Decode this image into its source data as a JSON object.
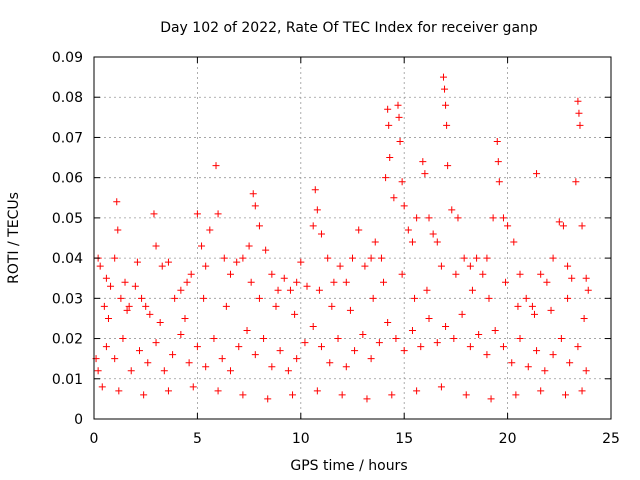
{
  "chart_data": {
    "type": "scatter",
    "title": "Day 102 of 2022, Rate Of TEC Index for receiver ganp",
    "xlabel": "GPS time / hours",
    "ylabel": "ROTI / TECUs",
    "xlim": [
      0,
      25
    ],
    "ylim": [
      0,
      0.09
    ],
    "xticks": [
      0,
      5,
      10,
      15,
      20,
      25
    ],
    "xtick_labels": [
      "0",
      "5",
      "10",
      "15",
      "20",
      "25"
    ],
    "yticks": [
      0,
      0.01,
      0.02,
      0.03,
      0.04,
      0.05,
      0.06,
      0.07,
      0.08,
      0.09
    ],
    "ytick_labels": [
      "0",
      "0.01",
      "0.02",
      "0.03",
      "0.04",
      "0.05",
      "0.06",
      "0.07",
      "0.08",
      "0.09"
    ],
    "grid": true,
    "marker": "+",
    "color": "#ff0000",
    "series": [
      {
        "points": [
          [
            0.1,
            0.015
          ],
          [
            0.2,
            0.04
          ],
          [
            0.3,
            0.038
          ],
          [
            0.5,
            0.028
          ],
          [
            0.6,
            0.035
          ],
          [
            0.8,
            0.033
          ],
          [
            1.0,
            0.04
          ],
          [
            1.1,
            0.054
          ],
          [
            1.15,
            0.047
          ],
          [
            1.3,
            0.03
          ],
          [
            1.5,
            0.034
          ],
          [
            1.7,
            0.028
          ],
          [
            2.0,
            0.033
          ],
          [
            2.1,
            0.039
          ],
          [
            2.3,
            0.03
          ],
          [
            2.5,
            0.028
          ],
          [
            2.9,
            0.051
          ],
          [
            3.0,
            0.043
          ],
          [
            3.3,
            0.038
          ],
          [
            3.6,
            0.039
          ],
          [
            3.9,
            0.03
          ],
          [
            4.2,
            0.032
          ],
          [
            4.5,
            0.034
          ],
          [
            4.7,
            0.036
          ],
          [
            5.0,
            0.051
          ],
          [
            5.2,
            0.043
          ],
          [
            5.4,
            0.038
          ],
          [
            5.6,
            0.047
          ],
          [
            5.9,
            0.063
          ],
          [
            6.0,
            0.051
          ],
          [
            6.3,
            0.04
          ],
          [
            6.6,
            0.036
          ],
          [
            6.9,
            0.039
          ],
          [
            7.2,
            0.04
          ],
          [
            7.5,
            0.043
          ],
          [
            7.7,
            0.056
          ],
          [
            7.8,
            0.053
          ],
          [
            8.0,
            0.048
          ],
          [
            8.3,
            0.042
          ],
          [
            8.6,
            0.036
          ],
          [
            8.9,
            0.032
          ],
          [
            9.2,
            0.035
          ],
          [
            9.5,
            0.032
          ],
          [
            9.8,
            0.034
          ],
          [
            10.0,
            0.039
          ],
          [
            10.3,
            0.033
          ],
          [
            10.6,
            0.048
          ],
          [
            10.7,
            0.057
          ],
          [
            10.8,
            0.052
          ],
          [
            11.0,
            0.046
          ],
          [
            11.3,
            0.04
          ],
          [
            11.6,
            0.034
          ],
          [
            11.9,
            0.038
          ],
          [
            12.2,
            0.034
          ],
          [
            12.5,
            0.04
          ],
          [
            12.8,
            0.047
          ],
          [
            13.1,
            0.038
          ],
          [
            13.4,
            0.04
          ],
          [
            13.6,
            0.044
          ],
          [
            13.9,
            0.04
          ],
          [
            14.1,
            0.06
          ],
          [
            14.2,
            0.077
          ],
          [
            14.25,
            0.073
          ],
          [
            14.3,
            0.065
          ],
          [
            14.5,
            0.055
          ],
          [
            14.7,
            0.078
          ],
          [
            14.75,
            0.075
          ],
          [
            14.8,
            0.069
          ],
          [
            14.9,
            0.059
          ],
          [
            15.0,
            0.053
          ],
          [
            15.2,
            0.047
          ],
          [
            15.4,
            0.044
          ],
          [
            15.6,
            0.05
          ],
          [
            15.9,
            0.064
          ],
          [
            16.0,
            0.061
          ],
          [
            16.2,
            0.05
          ],
          [
            16.4,
            0.046
          ],
          [
            16.6,
            0.044
          ],
          [
            16.9,
            0.085
          ],
          [
            16.95,
            0.082
          ],
          [
            17.0,
            0.078
          ],
          [
            17.05,
            0.073
          ],
          [
            17.1,
            0.063
          ],
          [
            17.3,
            0.052
          ],
          [
            17.6,
            0.05
          ],
          [
            17.9,
            0.04
          ],
          [
            18.2,
            0.038
          ],
          [
            18.5,
            0.04
          ],
          [
            18.8,
            0.036
          ],
          [
            19.0,
            0.04
          ],
          [
            19.3,
            0.05
          ],
          [
            19.5,
            0.069
          ],
          [
            19.55,
            0.064
          ],
          [
            19.6,
            0.059
          ],
          [
            19.8,
            0.05
          ],
          [
            20.0,
            0.048
          ],
          [
            20.3,
            0.044
          ],
          [
            20.6,
            0.036
          ],
          [
            20.9,
            0.03
          ],
          [
            21.2,
            0.028
          ],
          [
            21.4,
            0.061
          ],
          [
            21.6,
            0.036
          ],
          [
            21.9,
            0.034
          ],
          [
            22.2,
            0.04
          ],
          [
            22.5,
            0.049
          ],
          [
            22.7,
            0.048
          ],
          [
            22.9,
            0.038
          ],
          [
            23.1,
            0.035
          ],
          [
            23.3,
            0.059
          ],
          [
            23.4,
            0.079
          ],
          [
            23.45,
            0.076
          ],
          [
            23.5,
            0.073
          ],
          [
            23.6,
            0.048
          ],
          [
            23.8,
            0.035
          ],
          [
            23.9,
            0.032
          ],
          [
            0.2,
            0.012
          ],
          [
            0.6,
            0.018
          ],
          [
            1.0,
            0.015
          ],
          [
            1.4,
            0.02
          ],
          [
            1.8,
            0.012
          ],
          [
            2.2,
            0.017
          ],
          [
            2.6,
            0.014
          ],
          [
            3.0,
            0.019
          ],
          [
            3.4,
            0.012
          ],
          [
            3.8,
            0.016
          ],
          [
            4.2,
            0.021
          ],
          [
            4.6,
            0.014
          ],
          [
            5.0,
            0.018
          ],
          [
            5.4,
            0.013
          ],
          [
            5.8,
            0.02
          ],
          [
            6.2,
            0.015
          ],
          [
            6.6,
            0.012
          ],
          [
            7.0,
            0.018
          ],
          [
            7.4,
            0.022
          ],
          [
            7.8,
            0.016
          ],
          [
            8.2,
            0.02
          ],
          [
            8.6,
            0.013
          ],
          [
            9.0,
            0.017
          ],
          [
            9.4,
            0.012
          ],
          [
            9.8,
            0.015
          ],
          [
            10.2,
            0.019
          ],
          [
            10.6,
            0.023
          ],
          [
            11.0,
            0.018
          ],
          [
            11.4,
            0.014
          ],
          [
            11.8,
            0.02
          ],
          [
            12.2,
            0.013
          ],
          [
            12.6,
            0.017
          ],
          [
            13.0,
            0.021
          ],
          [
            13.4,
            0.015
          ],
          [
            13.8,
            0.019
          ],
          [
            14.2,
            0.024
          ],
          [
            14.6,
            0.02
          ],
          [
            15.0,
            0.017
          ],
          [
            15.4,
            0.022
          ],
          [
            15.8,
            0.018
          ],
          [
            16.2,
            0.025
          ],
          [
            16.6,
            0.019
          ],
          [
            17.0,
            0.023
          ],
          [
            17.4,
            0.02
          ],
          [
            17.8,
            0.026
          ],
          [
            18.2,
            0.018
          ],
          [
            18.6,
            0.021
          ],
          [
            19.0,
            0.016
          ],
          [
            19.4,
            0.022
          ],
          [
            19.8,
            0.018
          ],
          [
            20.2,
            0.014
          ],
          [
            20.6,
            0.02
          ],
          [
            21.0,
            0.013
          ],
          [
            21.4,
            0.017
          ],
          [
            21.8,
            0.012
          ],
          [
            22.2,
            0.016
          ],
          [
            22.6,
            0.02
          ],
          [
            23.0,
            0.014
          ],
          [
            23.4,
            0.018
          ],
          [
            23.8,
            0.012
          ],
          [
            0.4,
            0.008
          ],
          [
            1.2,
            0.007
          ],
          [
            2.4,
            0.006
          ],
          [
            3.6,
            0.007
          ],
          [
            4.8,
            0.008
          ],
          [
            6.0,
            0.007
          ],
          [
            7.2,
            0.006
          ],
          [
            8.4,
            0.005
          ],
          [
            9.6,
            0.006
          ],
          [
            10.8,
            0.007
          ],
          [
            12.0,
            0.006
          ],
          [
            13.2,
            0.005
          ],
          [
            14.4,
            0.006
          ],
          [
            15.6,
            0.007
          ],
          [
            16.8,
            0.008
          ],
          [
            18.0,
            0.006
          ],
          [
            19.2,
            0.005
          ],
          [
            20.4,
            0.006
          ],
          [
            21.6,
            0.007
          ],
          [
            22.8,
            0.006
          ],
          [
            23.6,
            0.007
          ],
          [
            0.7,
            0.025
          ],
          [
            1.6,
            0.027
          ],
          [
            2.7,
            0.026
          ],
          [
            3.2,
            0.024
          ],
          [
            4.4,
            0.025
          ],
          [
            5.3,
            0.03
          ],
          [
            6.4,
            0.028
          ],
          [
            7.6,
            0.034
          ],
          [
            8.0,
            0.03
          ],
          [
            8.8,
            0.028
          ],
          [
            9.7,
            0.026
          ],
          [
            10.9,
            0.032
          ],
          [
            11.5,
            0.028
          ],
          [
            12.4,
            0.027
          ],
          [
            13.5,
            0.03
          ],
          [
            14.0,
            0.034
          ],
          [
            14.9,
            0.036
          ],
          [
            15.5,
            0.03
          ],
          [
            16.1,
            0.032
          ],
          [
            16.8,
            0.038
          ],
          [
            17.5,
            0.036
          ],
          [
            18.3,
            0.032
          ],
          [
            19.1,
            0.03
          ],
          [
            19.9,
            0.034
          ],
          [
            20.5,
            0.028
          ],
          [
            21.3,
            0.026
          ],
          [
            22.1,
            0.027
          ],
          [
            22.9,
            0.03
          ],
          [
            23.7,
            0.025
          ]
        ]
      }
    ]
  }
}
